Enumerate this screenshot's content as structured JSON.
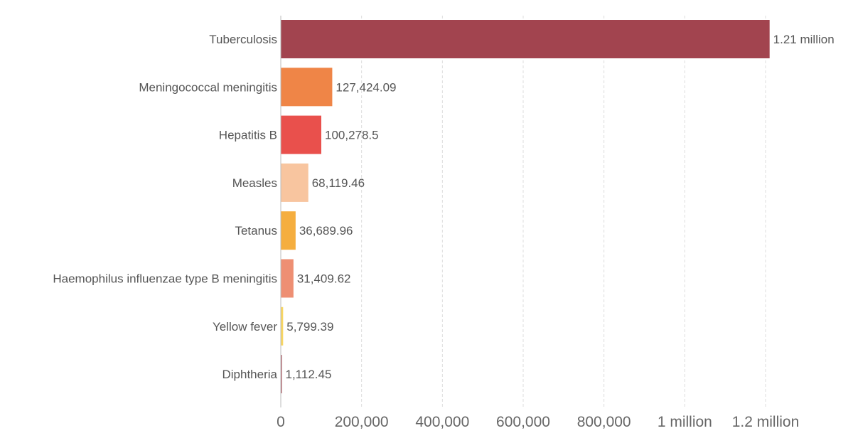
{
  "chart_data": {
    "type": "bar",
    "orientation": "horizontal",
    "categories": [
      "Tuberculosis",
      "Meningococcal meningitis",
      "Hepatitis B",
      "Measles",
      "Tetanus",
      "Haemophilus influenzae type B meningitis",
      "Yellow fever",
      "Diphtheria"
    ],
    "values": [
      1210000,
      127424.09,
      100278.5,
      68119.46,
      36689.96,
      31409.62,
      5799.39,
      1112.45
    ],
    "value_labels": [
      "1.21 million",
      "127,424.09",
      "100,278.5",
      "68,119.46",
      "36,689.96",
      "31,409.62",
      "5,799.39",
      "1,112.45"
    ],
    "colors": [
      "#a2444f",
      "#ef8547",
      "#e9504c",
      "#f8c59f",
      "#f5ae3f",
      "#ee8f73",
      "#f8d661",
      "#a2444f"
    ],
    "xlim": [
      0,
      1200000
    ],
    "x_ticks": [
      0,
      200000,
      400000,
      600000,
      800000,
      1000000,
      1200000
    ],
    "x_tick_labels": [
      "0",
      "200,000",
      "400,000",
      "600,000",
      "800,000",
      "1 million",
      "1.2 million"
    ],
    "grid": "vertical-dashed",
    "legend": "none"
  }
}
